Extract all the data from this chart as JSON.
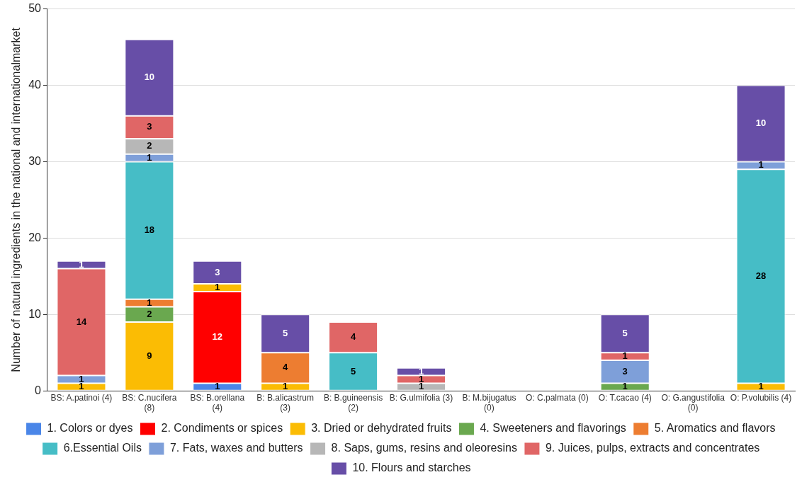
{
  "chart_data": {
    "type": "bar",
    "stacked": true,
    "ylabel": "Number of natural ingredients in the national and internationalmarket",
    "categories": [
      "BS: A.patinoi (4)",
      "BS: C.nucifera (8)",
      "BS: B.orellana (4)",
      "B: B.alicastrum (3)",
      "B: B.guineensis (2)",
      "B: G.ulmifolia (3)",
      "B: M.bijugatus (0)",
      "O: C.palmata (0)",
      "O: T.cacao (4)",
      "O: G.angustifolia (0)",
      "O: P.volubilis (4)"
    ],
    "series": [
      {
        "name": "1. Colors or dyes",
        "color": "#4a86e8",
        "values": [
          null,
          null,
          1,
          null,
          null,
          null,
          null,
          null,
          null,
          null,
          null
        ]
      },
      {
        "name": "2. Condiments or spices",
        "color": "#ff0000",
        "values": [
          null,
          null,
          12,
          null,
          null,
          null,
          null,
          null,
          null,
          null,
          null
        ]
      },
      {
        "name": "3. Dried or dehydrated fruits",
        "color": "#fbbc04",
        "values": [
          1,
          9,
          1,
          1,
          null,
          null,
          null,
          null,
          null,
          null,
          1
        ]
      },
      {
        "name": "4. Sweeteners and flavorings",
        "color": "#6aa84f",
        "values": [
          null,
          2,
          null,
          null,
          null,
          null,
          null,
          null,
          1,
          null,
          null
        ]
      },
      {
        "name": "5. Aromatics and flavors",
        "color": "#ed7d31",
        "values": [
          null,
          1,
          null,
          4,
          null,
          null,
          null,
          null,
          null,
          null,
          null
        ]
      },
      {
        "name": "6.Essential Oils",
        "color": "#46bdc6",
        "values": [
          null,
          18,
          null,
          null,
          5,
          null,
          null,
          null,
          null,
          null,
          28
        ]
      },
      {
        "name": "7. Fats, waxes and butters",
        "color": "#7e9fd9",
        "values": [
          1,
          1,
          null,
          null,
          null,
          null,
          null,
          null,
          3,
          null,
          1
        ]
      },
      {
        "name": "8. Saps, gums, resins and oleoresins",
        "color": "#b7b7b7",
        "values": [
          null,
          2,
          null,
          null,
          null,
          1,
          null,
          null,
          null,
          null,
          null
        ]
      },
      {
        "name": "9. Juices, pulps, extracts and concentrates",
        "color": "#e06666",
        "values": [
          14,
          3,
          null,
          null,
          4,
          1,
          null,
          null,
          1,
          null,
          null
        ]
      },
      {
        "name": "10. Flours and starches",
        "color": "#674ea7",
        "values": [
          1,
          10,
          3,
          5,
          null,
          1,
          null,
          null,
          5,
          null,
          10
        ]
      }
    ],
    "ylim": [
      0,
      50
    ],
    "yticks": [
      0,
      10,
      20,
      30,
      40,
      50
    ],
    "grid": "y",
    "legend": "bottom",
    "data_labels": true
  }
}
